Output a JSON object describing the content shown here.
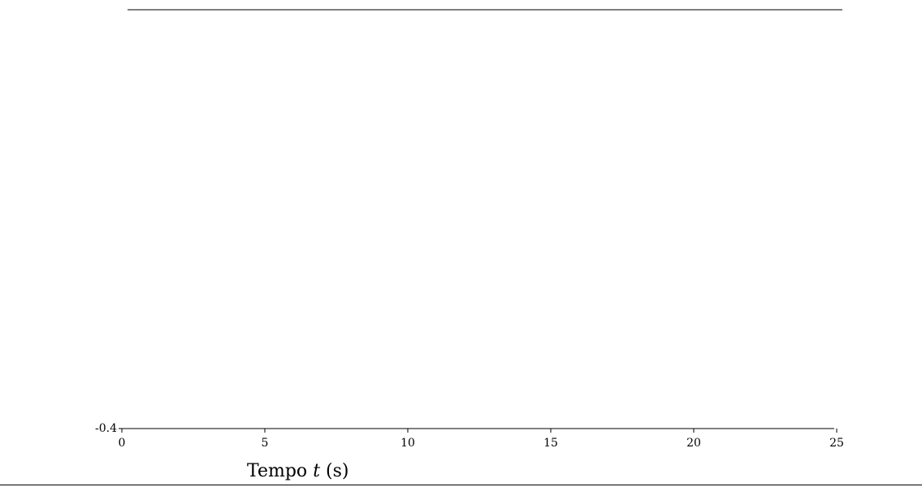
{
  "chart_data": {
    "type": "line",
    "title": "",
    "xlabel": "Tempo t (s)",
    "xlabel_prefix": "Tempo",
    "xlabel_var": "t",
    "xlabel_unit": "(s)",
    "ylabel": "",
    "xlim": [
      0,
      25
    ],
    "ylim": [
      -0.4,
      0.6
    ],
    "xticks": [
      0,
      5,
      10,
      15,
      20,
      25
    ],
    "xtick_labels": [
      "0",
      "5",
      "10",
      "15",
      "20",
      "25"
    ],
    "yticks": [
      -0.4
    ],
    "ytick_labels": [
      "-0.4"
    ],
    "grid": false,
    "series": []
  }
}
